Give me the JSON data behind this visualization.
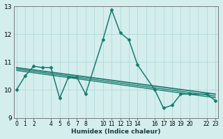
{
  "xlabel": "Humidex (Indice chaleur)",
  "bg_color": "#d4eeee",
  "grid_color": "#b2d8d8",
  "line_color": "#1a7a6e",
  "xlim": [
    0,
    23
  ],
  "ylim": [
    9,
    13
  ],
  "yticks": [
    9,
    10,
    11,
    12,
    13
  ],
  "xtick_positions": [
    0,
    1,
    2,
    4,
    5,
    6,
    7,
    8,
    10,
    11,
    12,
    13,
    14,
    16,
    17,
    18,
    19,
    20,
    22,
    23
  ],
  "xtick_labels": [
    "0",
    "1",
    "2",
    "4",
    "5",
    "6",
    "7",
    "8",
    "10",
    "11",
    "12",
    "13",
    "14",
    "16",
    "17",
    "18",
    "19",
    "20",
    "22",
    "23"
  ],
  "grid_xticks": [
    0,
    1,
    2,
    3,
    4,
    5,
    6,
    7,
    8,
    9,
    10,
    11,
    12,
    13,
    14,
    15,
    16,
    17,
    18,
    19,
    20,
    21,
    22,
    23
  ],
  "lines": [
    {
      "x": [
        0,
        1,
        2,
        3,
        4,
        5,
        6,
        7,
        8,
        10,
        11,
        12,
        13,
        14,
        16,
        17,
        18,
        19,
        20,
        22,
        23
      ],
      "y": [
        10.0,
        10.5,
        10.85,
        10.8,
        10.8,
        9.7,
        10.45,
        10.45,
        9.85,
        11.8,
        12.88,
        12.05,
        11.8,
        10.9,
        10.0,
        9.35,
        9.45,
        9.85,
        9.85,
        9.85,
        9.62
      ],
      "marker": "D",
      "markersize": 2.5,
      "linewidth": 1.1,
      "has_markers": true
    },
    {
      "x": [
        0,
        23
      ],
      "y": [
        10.8,
        9.85
      ],
      "marker": null,
      "markersize": 0,
      "linewidth": 1.3,
      "has_markers": false
    },
    {
      "x": [
        0,
        23
      ],
      "y": [
        10.75,
        9.78
      ],
      "marker": null,
      "markersize": 0,
      "linewidth": 1.0,
      "has_markers": false
    },
    {
      "x": [
        0,
        23
      ],
      "y": [
        10.7,
        9.72
      ],
      "marker": null,
      "markersize": 0,
      "linewidth": 1.0,
      "has_markers": false
    }
  ]
}
